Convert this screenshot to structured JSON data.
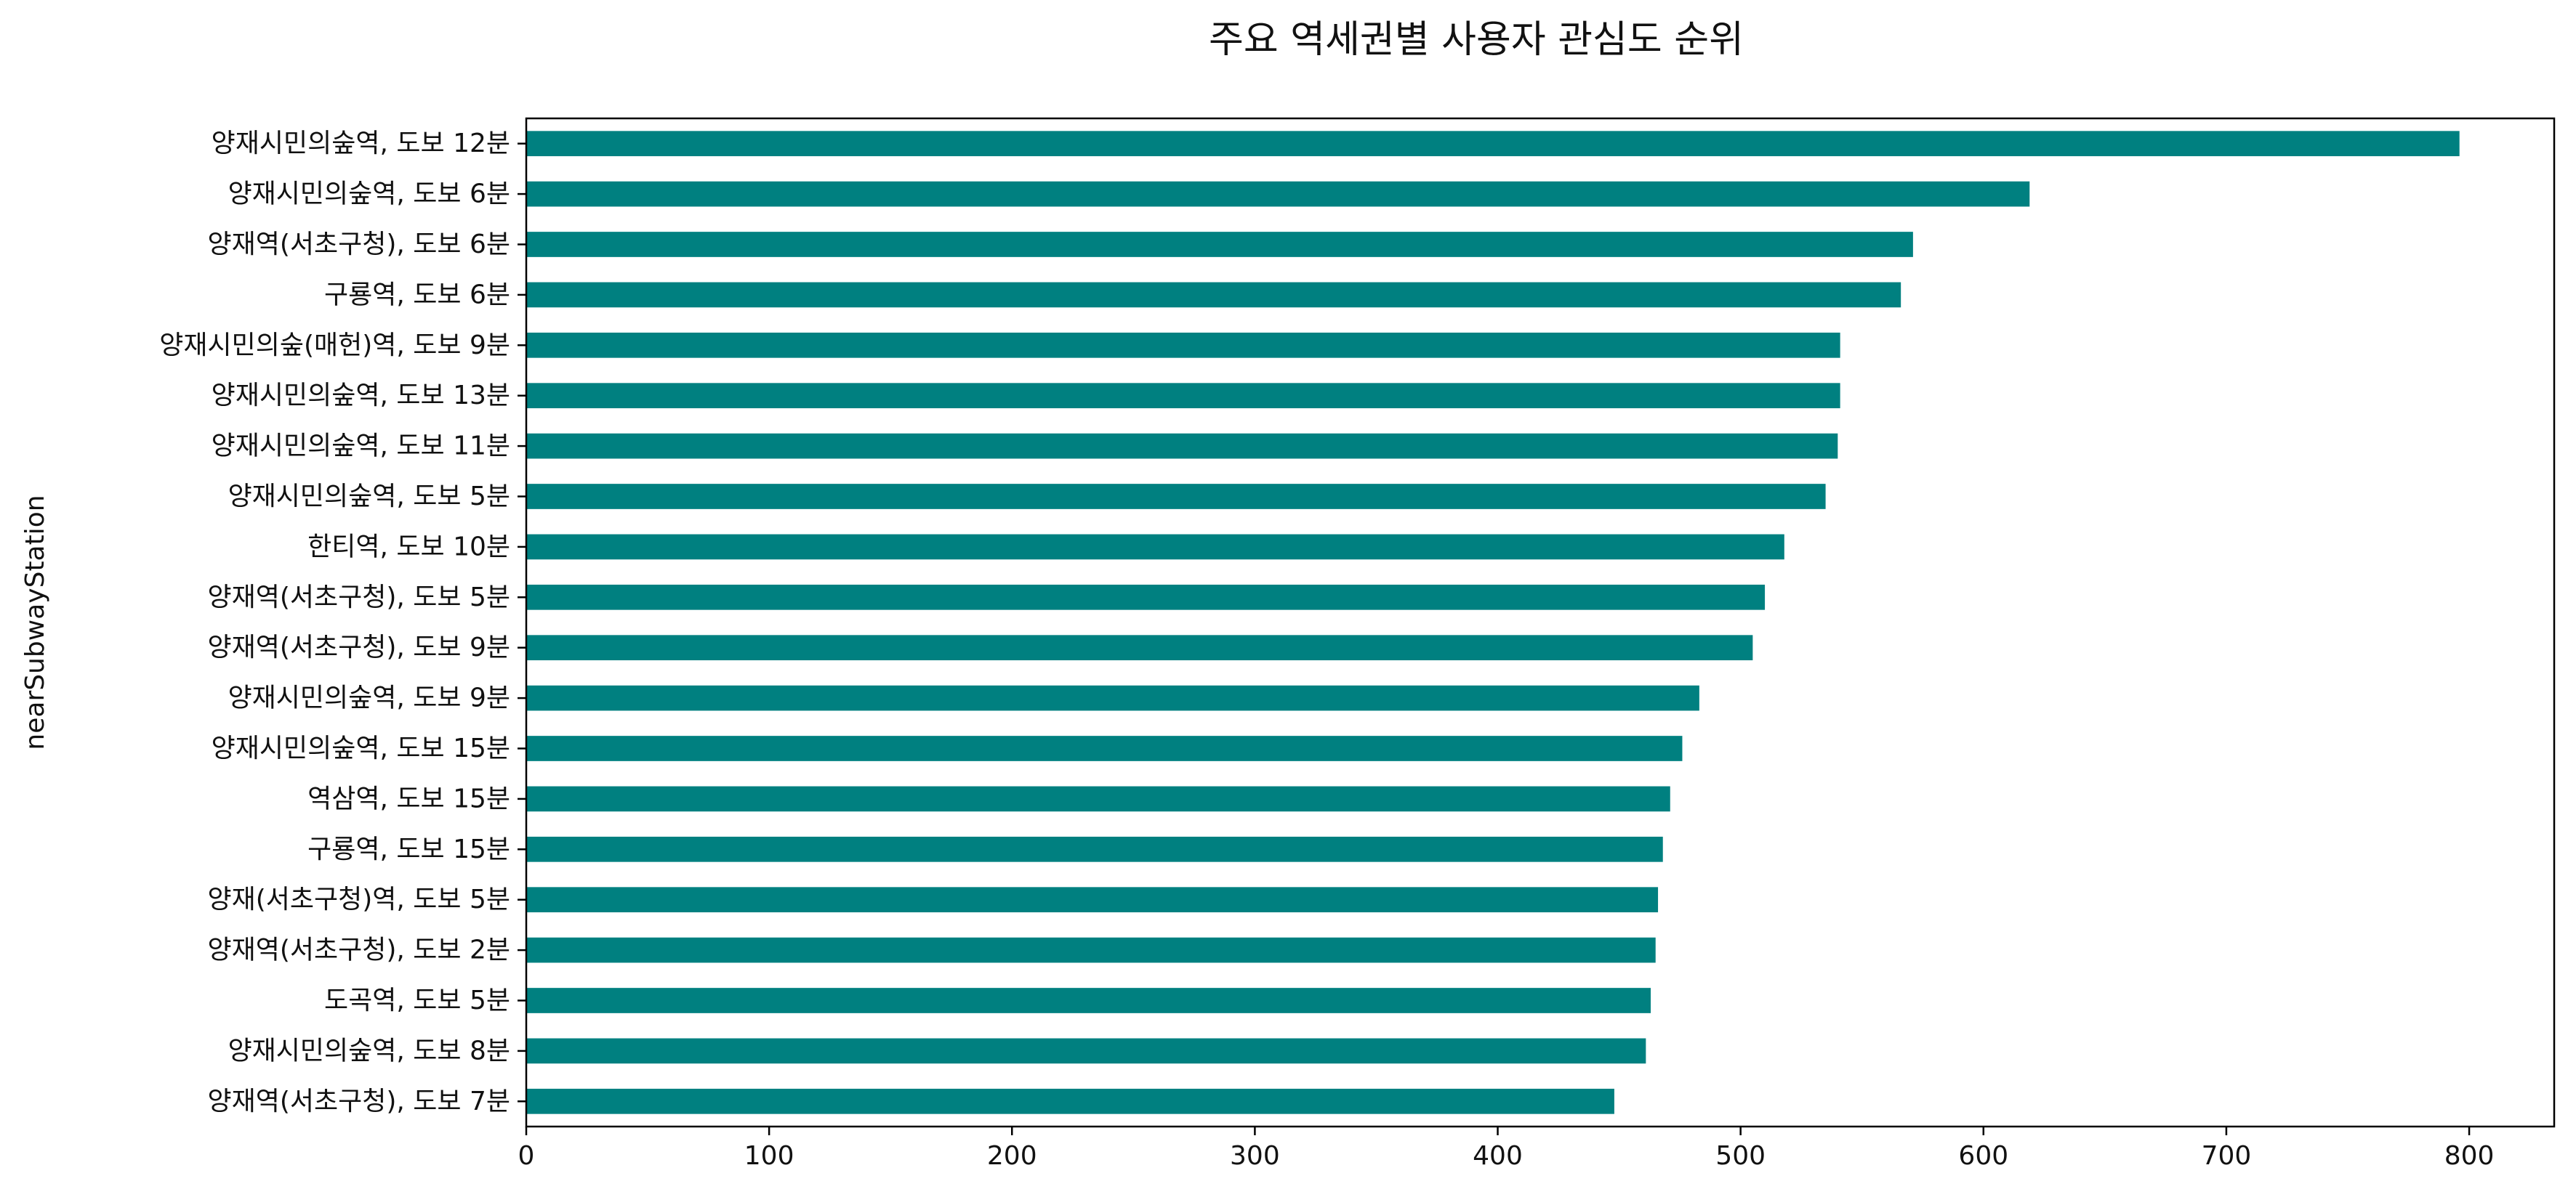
{
  "chart_data": {
    "type": "bar",
    "orientation": "horizontal",
    "title": "주요 역세권별 사용자 관심도 순위",
    "xlabel": "",
    "ylabel": "nearSubwayStation",
    "xlim": [
      0,
      835
    ],
    "xticks": [
      0,
      100,
      200,
      300,
      400,
      500,
      600,
      700,
      800
    ],
    "grid": false,
    "bar_color": "#008080",
    "categories": [
      "양재시민의숲역, 도보 12분",
      "양재시민의숲역, 도보 6분",
      "양재역(서초구청), 도보 6분",
      "구룡역, 도보 6분",
      "양재시민의숲(매헌)역, 도보 9분",
      "양재시민의숲역, 도보 13분",
      "양재시민의숲역, 도보 11분",
      "양재시민의숲역, 도보 5분",
      "한티역, 도보 10분",
      "양재역(서초구청), 도보 5분",
      "양재역(서초구청), 도보 9분",
      "양재시민의숲역, 도보 9분",
      "양재시민의숲역, 도보 15분",
      "역삼역, 도보 15분",
      "구룡역, 도보 15분",
      "양재(서초구청)역, 도보 5분",
      "양재역(서초구청), 도보 2분",
      "도곡역, 도보 5분",
      "양재시민의숲역, 도보 8분",
      "양재역(서초구청), 도보 7분"
    ],
    "values": [
      796,
      619,
      571,
      566,
      541,
      541,
      540,
      535,
      518,
      510,
      505,
      483,
      476,
      471,
      468,
      466,
      465,
      463,
      461,
      448
    ]
  }
}
